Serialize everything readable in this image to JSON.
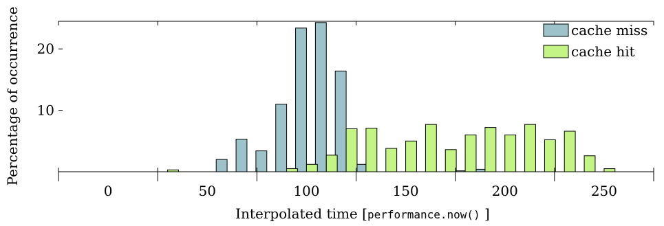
{
  "chart_data": {
    "type": "bar",
    "title": "",
    "xlabel_prefix": "Interpolated time [",
    "xlabel_code": "performance.now()",
    "xlabel_suffix": " ]",
    "ylabel": "Percentage of occurrence",
    "xlim": [
      -25,
      275
    ],
    "ylim": [
      0,
      24.5
    ],
    "xticks": [
      0,
      50,
      100,
      150,
      200,
      250
    ],
    "yticks": [
      10,
      20
    ],
    "bin_width": 10,
    "legend_position": "top-right",
    "series": [
      {
        "name": "cache miss",
        "color": "#9dc2c9",
        "points": [
          {
            "x": 60,
            "y": 2.0
          },
          {
            "x": 70,
            "y": 5.3
          },
          {
            "x": 80,
            "y": 3.4
          },
          {
            "x": 90,
            "y": 11.0
          },
          {
            "x": 100,
            "y": 23.4
          },
          {
            "x": 110,
            "y": 24.3
          },
          {
            "x": 120,
            "y": 16.4
          },
          {
            "x": 130,
            "y": 1.2
          },
          {
            "x": 180,
            "y": 0.15
          },
          {
            "x": 190,
            "y": 0.4
          }
        ]
      },
      {
        "name": "cache hit",
        "color": "#c4f386",
        "points": [
          {
            "x": 30,
            "y": 0.3
          },
          {
            "x": 90,
            "y": 0.5
          },
          {
            "x": 100,
            "y": 1.2
          },
          {
            "x": 110,
            "y": 2.7
          },
          {
            "x": 120,
            "y": 7.0
          },
          {
            "x": 130,
            "y": 7.1
          },
          {
            "x": 140,
            "y": 3.8
          },
          {
            "x": 150,
            "y": 5.0
          },
          {
            "x": 160,
            "y": 7.7
          },
          {
            "x": 170,
            "y": 3.6
          },
          {
            "x": 180,
            "y": 6.0
          },
          {
            "x": 190,
            "y": 7.2
          },
          {
            "x": 200,
            "y": 6.0
          },
          {
            "x": 210,
            "y": 7.7
          },
          {
            "x": 220,
            "y": 5.2
          },
          {
            "x": 230,
            "y": 6.6
          },
          {
            "x": 240,
            "y": 2.6
          },
          {
            "x": 250,
            "y": 0.5
          }
        ]
      }
    ]
  }
}
